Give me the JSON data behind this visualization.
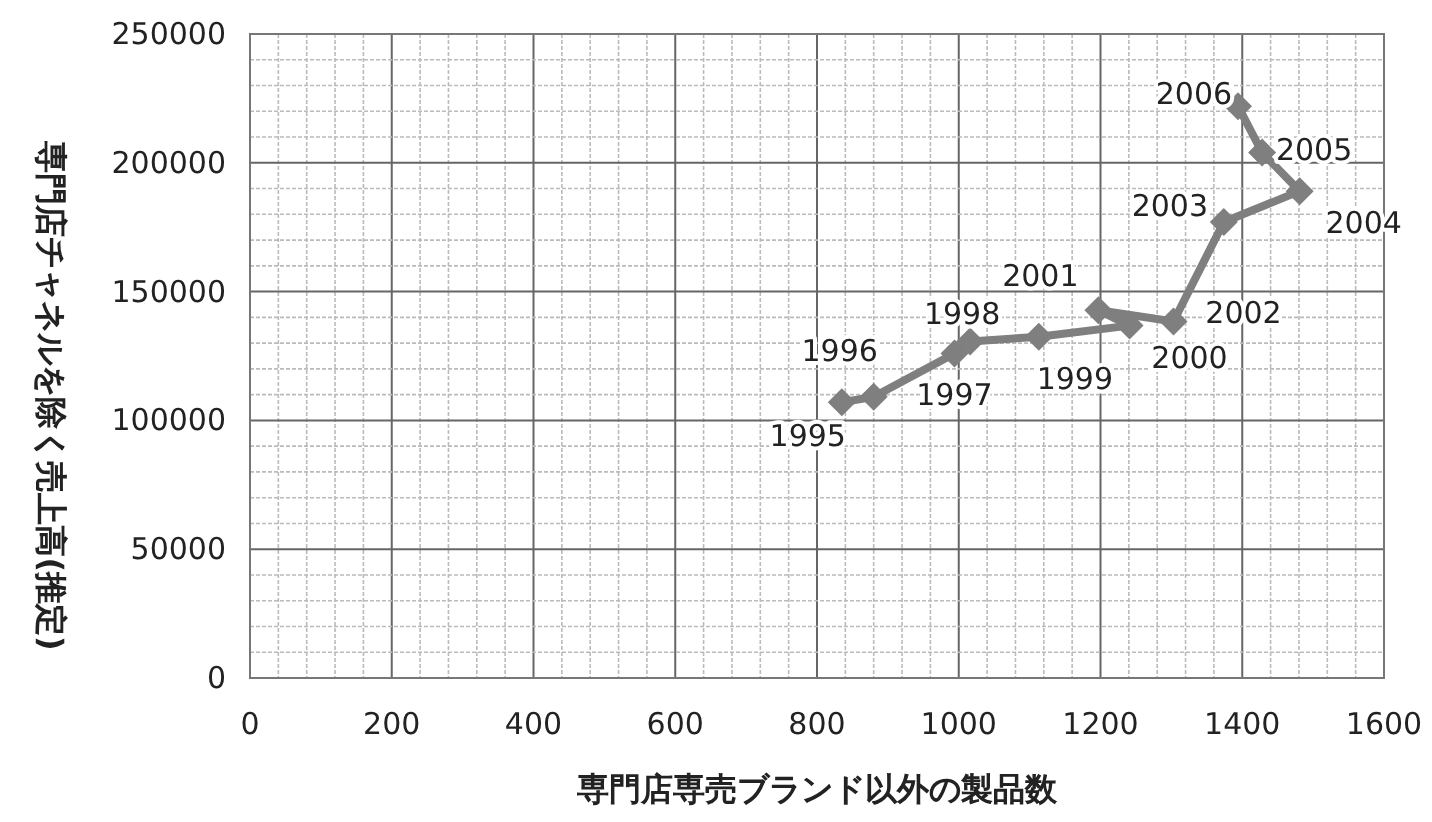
{
  "chart_data": {
    "type": "line",
    "xlabel": "専門店専売ブランド以外の製品数",
    "ylabel": "専門店チャネルを除く売上高(推定)",
    "x": [
      835,
      880,
      994,
      1016,
      1113,
      1241,
      1197,
      1303,
      1374,
      1481,
      1428,
      1394
    ],
    "series": [
      {
        "color": "#7f7f7f",
        "values": [
          107000,
          109200,
          126000,
          130600,
          132500,
          136800,
          142800,
          138400,
          177000,
          189000,
          204000,
          222000
        ]
      }
    ],
    "marker": "diamond",
    "grid": true,
    "xlim": [
      0,
      1600
    ],
    "xticks": [
      0,
      200,
      400,
      600,
      800,
      1000,
      1200,
      1400,
      1600
    ],
    "ylim": [
      0,
      250000
    ],
    "yticks": [
      0,
      50000,
      100000,
      150000,
      200000,
      250000
    ],
    "annotations": [
      {
        "text": "1995",
        "x": 835,
        "y": 107000
      },
      {
        "text": "1996",
        "x": 880,
        "y": 109200
      },
      {
        "text": "1997",
        "x": 994,
        "y": 126000
      },
      {
        "text": "1998",
        "x": 1016,
        "y": 130600
      },
      {
        "text": "1999",
        "x": 1113,
        "y": 132500
      },
      {
        "text": "2000",
        "x": 1241,
        "y": 136800
      },
      {
        "text": "2001",
        "x": 1197,
        "y": 142800
      },
      {
        "text": "2002",
        "x": 1303,
        "y": 138400
      },
      {
        "text": "2003",
        "x": 1374,
        "y": 177000
      },
      {
        "text": "2004",
        "x": 1481,
        "y": 189000
      },
      {
        "text": "2005",
        "x": 1428,
        "y": 204000
      },
      {
        "text": "2006",
        "x": 1394,
        "y": 222000
      }
    ]
  }
}
